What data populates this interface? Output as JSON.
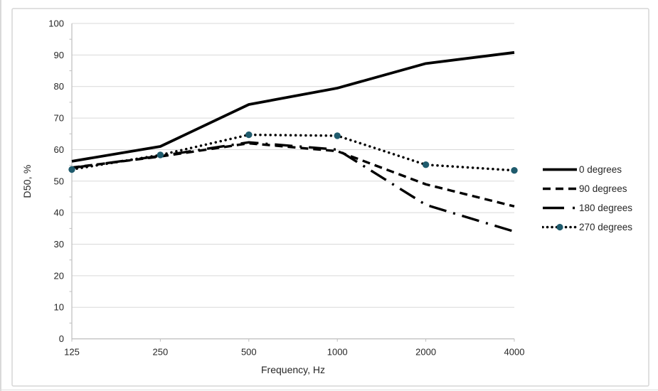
{
  "chart_data": {
    "type": "line",
    "title": "",
    "xlabel": "Frequency, Hz",
    "ylabel": "D50, %",
    "categories": [
      "125",
      "250",
      "500",
      "1000",
      "2000",
      "4000"
    ],
    "series": [
      {
        "name": "0 degrees",
        "style": "solid",
        "marker": false,
        "values": [
          56.3,
          61.0,
          74.3,
          79.5,
          87.3,
          90.8
        ]
      },
      {
        "name": "90 degrees",
        "style": "dashed",
        "marker": false,
        "values": [
          54.3,
          57.8,
          62.0,
          59.5,
          49.0,
          42.0
        ]
      },
      {
        "name": "180 degrees",
        "style": "long-dash-dot",
        "marker": false,
        "values": [
          54.2,
          58.0,
          62.3,
          60.0,
          42.5,
          34.0
        ]
      },
      {
        "name": "270 degrees",
        "style": "dotted",
        "marker": true,
        "values": [
          53.7,
          58.3,
          64.7,
          64.4,
          55.2,
          53.4
        ]
      }
    ],
    "ylim": [
      0,
      100
    ],
    "yticks": [
      0,
      10,
      20,
      30,
      40,
      50,
      60,
      70,
      80,
      90,
      100
    ],
    "minor_tick_step": 5,
    "grid": true,
    "legend_position": "right",
    "line_color": "#000000",
    "marker_color": "#1F5B6D",
    "gridline_color": "#D9D9D9",
    "axis_color": "#BFBFBF",
    "text_color": "#262626",
    "border_color": "#D6D6D6"
  }
}
